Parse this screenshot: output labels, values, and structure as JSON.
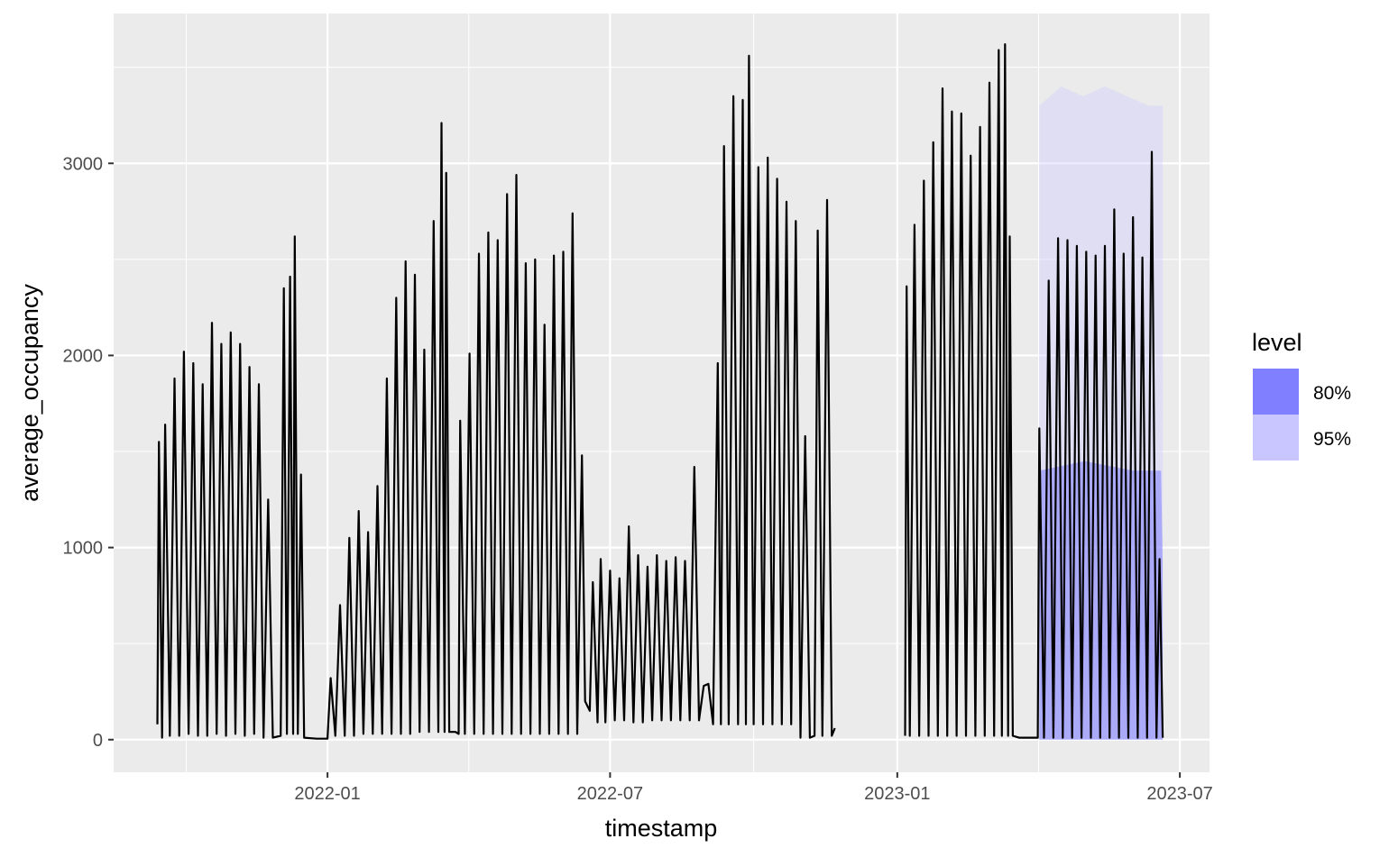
{
  "chart_data": {
    "type": "line",
    "xlabel": "timestamp",
    "ylabel": "average_occupancy",
    "xlim": [
      "2021-08-17",
      "2023-07-20"
    ],
    "ylim": [
      -170,
      3780
    ],
    "x_ticks": [
      "2022-01-01",
      "2022-07-01",
      "2023-01-01",
      "2023-07-01"
    ],
    "x_tick_labels": [
      "2022-01",
      "2022-07",
      "2023-01",
      "2023-07"
    ],
    "y_ticks": [
      0,
      1000,
      2000,
      3000
    ],
    "y_tick_labels": [
      "0",
      "1000",
      "2000",
      "3000"
    ],
    "grid": true,
    "legend": {
      "title": "level",
      "position": "right",
      "items": [
        {
          "label": "80%",
          "color": "#7f7fff"
        },
        {
          "label": "95%",
          "color": "#c9c6ff"
        }
      ]
    },
    "series": [
      {
        "role": "observed",
        "color": "#000000",
        "points": [
          [
            "2021-09-14",
            80
          ],
          [
            "2021-09-15",
            1550
          ],
          [
            "2021-09-17",
            10
          ],
          [
            "2021-09-19",
            1640
          ],
          [
            "2021-09-22",
            20
          ],
          [
            "2021-09-25",
            1880
          ],
          [
            "2021-09-28",
            20
          ],
          [
            "2021-10-01",
            2020
          ],
          [
            "2021-10-04",
            30
          ],
          [
            "2021-10-07",
            1960
          ],
          [
            "2021-10-10",
            20
          ],
          [
            "2021-10-13",
            1850
          ],
          [
            "2021-10-16",
            20
          ],
          [
            "2021-10-19",
            2170
          ],
          [
            "2021-10-22",
            30
          ],
          [
            "2021-10-25",
            2060
          ],
          [
            "2021-10-28",
            20
          ],
          [
            "2021-10-31",
            2120
          ],
          [
            "2021-11-03",
            30
          ],
          [
            "2021-11-06",
            2060
          ],
          [
            "2021-11-09",
            20
          ],
          [
            "2021-11-12",
            1940
          ],
          [
            "2021-11-15",
            30
          ],
          [
            "2021-11-18",
            1850
          ],
          [
            "2021-11-21",
            10
          ],
          [
            "2021-11-24",
            1250
          ],
          [
            "2021-11-27",
            10
          ],
          [
            "2021-12-02",
            20
          ],
          [
            "2021-12-04",
            2350
          ],
          [
            "2021-12-06",
            30
          ],
          [
            "2021-12-08",
            2410
          ],
          [
            "2021-12-10",
            30
          ],
          [
            "2021-12-11",
            2620
          ],
          [
            "2021-12-13",
            30
          ],
          [
            "2021-12-15",
            1380
          ],
          [
            "2021-12-17",
            10
          ],
          [
            "2021-12-25",
            5
          ],
          [
            "2022-01-01",
            5
          ],
          [
            "2022-01-03",
            320
          ],
          [
            "2022-01-06",
            20
          ],
          [
            "2022-01-09",
            700
          ],
          [
            "2022-01-12",
            20
          ],
          [
            "2022-01-15",
            1050
          ],
          [
            "2022-01-18",
            20
          ],
          [
            "2022-01-21",
            1190
          ],
          [
            "2022-01-24",
            30
          ],
          [
            "2022-01-27",
            1080
          ],
          [
            "2022-01-30",
            30
          ],
          [
            "2022-02-02",
            1320
          ],
          [
            "2022-02-05",
            30
          ],
          [
            "2022-02-08",
            1880
          ],
          [
            "2022-02-11",
            30
          ],
          [
            "2022-02-14",
            2300
          ],
          [
            "2022-02-17",
            30
          ],
          [
            "2022-02-20",
            2490
          ],
          [
            "2022-02-23",
            30
          ],
          [
            "2022-02-26",
            2420
          ],
          [
            "2022-03-01",
            40
          ],
          [
            "2022-03-04",
            2030
          ],
          [
            "2022-03-07",
            40
          ],
          [
            "2022-03-10",
            2700
          ],
          [
            "2022-03-13",
            40
          ],
          [
            "2022-03-15",
            3210
          ],
          [
            "2022-03-17",
            40
          ],
          [
            "2022-03-18",
            2950
          ],
          [
            "2022-03-20",
            40
          ],
          [
            "2022-03-24",
            40
          ],
          [
            "2022-03-26",
            30
          ],
          [
            "2022-03-27",
            1660
          ],
          [
            "2022-03-30",
            30
          ],
          [
            "2022-04-02",
            2010
          ],
          [
            "2022-04-05",
            30
          ],
          [
            "2022-04-08",
            2530
          ],
          [
            "2022-04-11",
            30
          ],
          [
            "2022-04-14",
            2640
          ],
          [
            "2022-04-17",
            30
          ],
          [
            "2022-04-20",
            2600
          ],
          [
            "2022-04-23",
            30
          ],
          [
            "2022-04-26",
            2840
          ],
          [
            "2022-04-29",
            30
          ],
          [
            "2022-05-02",
            2940
          ],
          [
            "2022-05-05",
            30
          ],
          [
            "2022-05-08",
            2480
          ],
          [
            "2022-05-11",
            30
          ],
          [
            "2022-05-14",
            2500
          ],
          [
            "2022-05-17",
            30
          ],
          [
            "2022-05-20",
            2160
          ],
          [
            "2022-05-23",
            30
          ],
          [
            "2022-05-26",
            2520
          ],
          [
            "2022-05-29",
            30
          ],
          [
            "2022-06-01",
            2540
          ],
          [
            "2022-06-04",
            30
          ],
          [
            "2022-06-07",
            2740
          ],
          [
            "2022-06-10",
            30
          ],
          [
            "2022-06-13",
            1480
          ],
          [
            "2022-06-15",
            200
          ],
          [
            "2022-06-18",
            150
          ],
          [
            "2022-06-20",
            820
          ],
          [
            "2022-06-23",
            90
          ],
          [
            "2022-06-25",
            940
          ],
          [
            "2022-06-28",
            90
          ],
          [
            "2022-07-01",
            880
          ],
          [
            "2022-07-04",
            100
          ],
          [
            "2022-07-07",
            840
          ],
          [
            "2022-07-10",
            100
          ],
          [
            "2022-07-13",
            1110
          ],
          [
            "2022-07-16",
            90
          ],
          [
            "2022-07-19",
            960
          ],
          [
            "2022-07-22",
            90
          ],
          [
            "2022-07-25",
            900
          ],
          [
            "2022-07-28",
            100
          ],
          [
            "2022-07-31",
            960
          ],
          [
            "2022-08-03",
            100
          ],
          [
            "2022-08-06",
            930
          ],
          [
            "2022-08-09",
            100
          ],
          [
            "2022-08-12",
            950
          ],
          [
            "2022-08-15",
            100
          ],
          [
            "2022-08-18",
            930
          ],
          [
            "2022-08-21",
            100
          ],
          [
            "2022-08-24",
            1420
          ],
          [
            "2022-08-27",
            100
          ],
          [
            "2022-08-30",
            280
          ],
          [
            "2022-09-02",
            290
          ],
          [
            "2022-09-05",
            80
          ],
          [
            "2022-09-08",
            1960
          ],
          [
            "2022-09-10",
            80
          ],
          [
            "2022-09-12",
            3090
          ],
          [
            "2022-09-15",
            80
          ],
          [
            "2022-09-18",
            3350
          ],
          [
            "2022-09-21",
            80
          ],
          [
            "2022-09-24",
            3330
          ],
          [
            "2022-09-26",
            80
          ],
          [
            "2022-09-28",
            3560
          ],
          [
            "2022-10-01",
            80
          ],
          [
            "2022-10-04",
            2980
          ],
          [
            "2022-10-07",
            80
          ],
          [
            "2022-10-10",
            3030
          ],
          [
            "2022-10-13",
            80
          ],
          [
            "2022-10-16",
            2920
          ],
          [
            "2022-10-19",
            80
          ],
          [
            "2022-10-22",
            2800
          ],
          [
            "2022-10-25",
            80
          ],
          [
            "2022-10-28",
            2700
          ],
          [
            "2022-10-31",
            10
          ],
          [
            "2022-11-03",
            1580
          ],
          [
            "2022-11-06",
            10
          ],
          [
            "2022-11-09",
            20
          ],
          [
            "2022-11-11",
            2650
          ],
          [
            "2022-11-14",
            20
          ],
          [
            "2022-11-17",
            2810
          ],
          [
            "2022-11-20",
            20
          ],
          [
            "2022-11-22",
            60
          ],
          [
            "2023-01-06",
            20
          ],
          [
            "2023-01-07",
            2360
          ],
          [
            "2023-01-09",
            20
          ],
          [
            "2023-01-12",
            2680
          ],
          [
            "2023-01-15",
            20
          ],
          [
            "2023-01-18",
            2910
          ],
          [
            "2023-01-21",
            20
          ],
          [
            "2023-01-24",
            3110
          ],
          [
            "2023-01-27",
            20
          ],
          [
            "2023-01-30",
            3390
          ],
          [
            "2023-02-02",
            20
          ],
          [
            "2023-02-05",
            3270
          ],
          [
            "2023-02-08",
            20
          ],
          [
            "2023-02-11",
            3260
          ],
          [
            "2023-02-14",
            20
          ],
          [
            "2023-02-17",
            3040
          ],
          [
            "2023-02-20",
            20
          ],
          [
            "2023-02-23",
            3190
          ],
          [
            "2023-02-26",
            20
          ],
          [
            "2023-03-01",
            3420
          ],
          [
            "2023-03-04",
            20
          ],
          [
            "2023-03-07",
            3590
          ],
          [
            "2023-03-09",
            20
          ],
          [
            "2023-03-11",
            3620
          ],
          [
            "2023-03-13",
            20
          ],
          [
            "2023-03-14",
            2620
          ],
          [
            "2023-03-16",
            20
          ],
          [
            "2023-03-20",
            10
          ],
          [
            "2023-03-25",
            10
          ],
          [
            "2023-04-01",
            10
          ],
          [
            "2023-04-02",
            1620
          ],
          [
            "2023-04-05",
            10
          ],
          [
            "2023-04-08",
            2390
          ],
          [
            "2023-04-11",
            10
          ],
          [
            "2023-04-14",
            2610
          ],
          [
            "2023-04-17",
            10
          ],
          [
            "2023-04-20",
            2600
          ],
          [
            "2023-04-23",
            10
          ],
          [
            "2023-04-26",
            2570
          ],
          [
            "2023-04-29",
            10
          ],
          [
            "2023-05-02",
            2540
          ],
          [
            "2023-05-05",
            10
          ],
          [
            "2023-05-08",
            2520
          ],
          [
            "2023-05-11",
            10
          ],
          [
            "2023-05-14",
            2570
          ],
          [
            "2023-05-17",
            10
          ],
          [
            "2023-05-20",
            2760
          ],
          [
            "2023-05-23",
            10
          ],
          [
            "2023-05-26",
            2530
          ],
          [
            "2023-05-29",
            10
          ],
          [
            "2023-06-01",
            2720
          ],
          [
            "2023-06-04",
            10
          ],
          [
            "2023-06-07",
            2510
          ],
          [
            "2023-06-10",
            10
          ],
          [
            "2023-06-13",
            3060
          ],
          [
            "2023-06-16",
            10
          ],
          [
            "2023-06-18",
            940
          ],
          [
            "2023-06-20",
            10
          ]
        ]
      },
      {
        "role": "interval",
        "level": "95%",
        "color": "#c9c6ff",
        "upper": [
          [
            "2023-04-02",
            3300
          ],
          [
            "2023-04-16",
            3400
          ],
          [
            "2023-04-30",
            3350
          ],
          [
            "2023-05-14",
            3400
          ],
          [
            "2023-05-28",
            3350
          ],
          [
            "2023-06-11",
            3300
          ],
          [
            "2023-06-20",
            3300
          ]
        ],
        "lower": [
          [
            "2023-04-02",
            0
          ],
          [
            "2023-06-20",
            0
          ]
        ]
      },
      {
        "role": "interval",
        "level": "80%",
        "color": "#7f7fff",
        "upper": [
          [
            "2023-04-02",
            1400
          ],
          [
            "2023-05-01",
            1450
          ],
          [
            "2023-06-01",
            1400
          ],
          [
            "2023-06-19",
            1400
          ],
          [
            "2023-06-20",
            900
          ]
        ],
        "lower": [
          [
            "2023-04-02",
            0
          ],
          [
            "2023-06-20",
            0
          ]
        ]
      }
    ]
  }
}
